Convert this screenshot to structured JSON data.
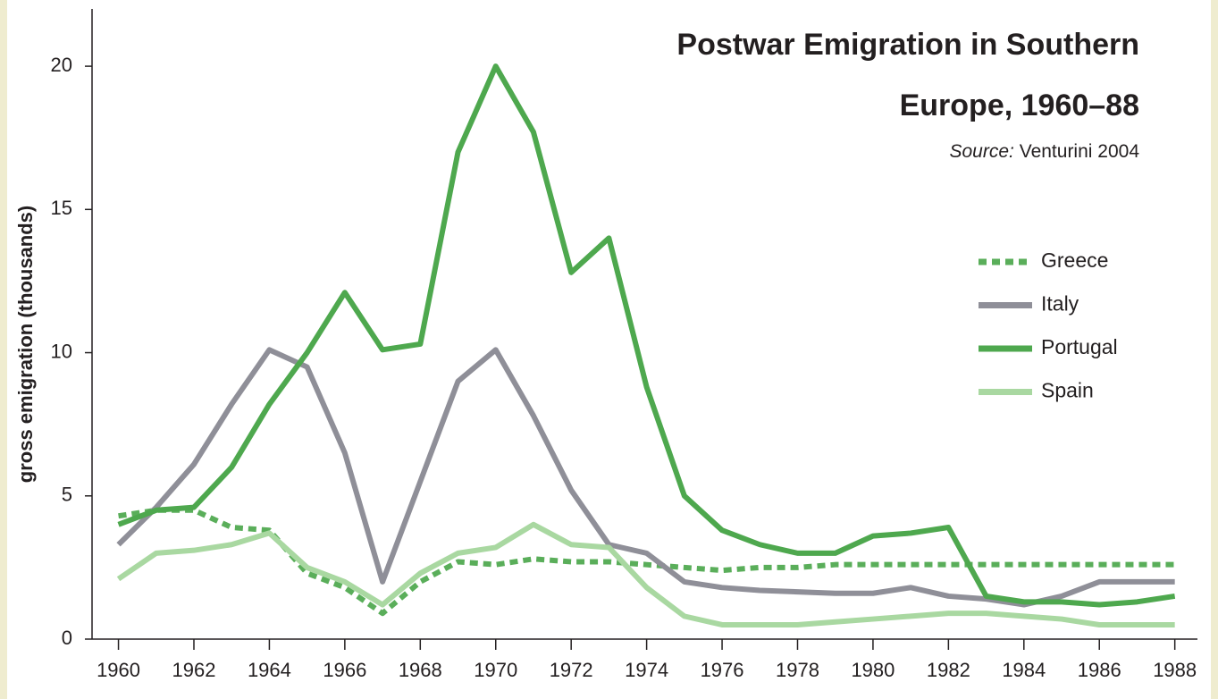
{
  "chart_data": {
    "type": "line",
    "title": [
      "Postwar Emigration in Southern",
      "Europe, 1960–88"
    ],
    "source_label": "Source:",
    "source": "Venturini 2004",
    "y_label": "gross emigration (thousands)",
    "x": [
      1960,
      1961,
      1962,
      1963,
      1964,
      1965,
      1966,
      1967,
      1968,
      1969,
      1970,
      1971,
      1972,
      1973,
      1974,
      1975,
      1976,
      1977,
      1978,
      1979,
      1980,
      1981,
      1982,
      1983,
      1984,
      1985,
      1986,
      1987,
      1988
    ],
    "series": [
      {
        "name": "Greece",
        "color": "#5aae5a",
        "dashed": true,
        "values": [
          4.3,
          4.5,
          4.5,
          3.9,
          3.8,
          2.3,
          1.8,
          0.9,
          2.0,
          2.7,
          2.6,
          2.8,
          2.7,
          2.7,
          2.6,
          2.5,
          2.4,
          2.5,
          2.5,
          2.6,
          2.6,
          2.6,
          2.6,
          2.6,
          2.6,
          2.6,
          2.6,
          2.6,
          2.6
        ]
      },
      {
        "name": "Italy",
        "color": "#8f8f98",
        "dashed": false,
        "values": [
          3.3,
          4.6,
          6.1,
          8.2,
          10.1,
          9.5,
          6.5,
          2.0,
          5.5,
          9.0,
          10.1,
          7.8,
          5.2,
          3.3,
          3.0,
          2.0,
          1.8,
          1.7,
          1.65,
          1.6,
          1.6,
          1.8,
          1.5,
          1.4,
          1.2,
          1.5,
          2.0,
          2.0,
          2.0
        ]
      },
      {
        "name": "Portugal",
        "color": "#4ea84e",
        "dashed": false,
        "values": [
          4.0,
          4.5,
          4.6,
          6.0,
          8.2,
          10.0,
          12.1,
          10.1,
          10.3,
          17.0,
          20.0,
          17.7,
          12.8,
          14.0,
          8.8,
          5.0,
          3.8,
          3.3,
          3.0,
          3.0,
          3.6,
          3.7,
          3.9,
          1.5,
          1.3,
          1.3,
          1.2,
          1.3,
          1.5
        ]
      },
      {
        "name": "Spain",
        "color": "#a9d8a1",
        "dashed": false,
        "values": [
          2.1,
          3.0,
          3.1,
          3.3,
          3.7,
          2.5,
          2.0,
          1.2,
          2.3,
          3.0,
          3.2,
          4.0,
          3.3,
          3.2,
          1.8,
          0.8,
          0.5,
          0.5,
          0.5,
          0.6,
          0.7,
          0.8,
          0.9,
          0.9,
          0.8,
          0.7,
          0.5,
          0.5,
          0.5
        ]
      }
    ],
    "xlim": [
      1959.3,
      1988.6
    ],
    "xticks": [
      1960,
      1962,
      1964,
      1966,
      1968,
      1970,
      1972,
      1974,
      1976,
      1978,
      1980,
      1982,
      1984,
      1986,
      1988
    ],
    "ylim": [
      0,
      22
    ],
    "yticks": [
      0,
      5,
      10,
      15,
      20
    ],
    "legend": "right"
  }
}
